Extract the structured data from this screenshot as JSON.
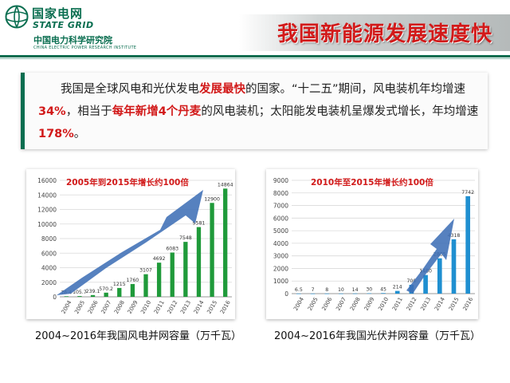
{
  "header": {
    "logo_cn": "国家电网",
    "logo_en": "STATE GRID",
    "org_cn": "中国电力科学研究院",
    "org_en": "CHINA ELECTRIC POWER RESEARCH INSTITUTE",
    "title": "我国新能源发展速度快"
  },
  "summary": {
    "p1": "我国是全球风电和光伏发电",
    "h1": "发展最快",
    "p2": "的国家。“十二五”期间，风电装机年均增速",
    "h2": "34%",
    "p3": "，相当于",
    "h3": "每年新增4个丹麦",
    "p4": "的风电装机；太阳能发电装机呈爆发式增长，年均增速",
    "h4": "178%",
    "p5": "。"
  },
  "chart_data": [
    {
      "type": "bar",
      "annotation": "2005年到2015年增长约100倍",
      "caption": "2004~2016年我国风电并网容量（万千瓦）",
      "categories": [
        "2004",
        "2005",
        "2006",
        "2007",
        "2008",
        "2009",
        "2010",
        "2011",
        "2012",
        "2013",
        "2014",
        "2015",
        "2016"
      ],
      "values": [
        76.4,
        105.7,
        239.1,
        570.2,
        1215,
        1760,
        3107,
        4692,
        6083,
        7548,
        9581,
        12900,
        14864
      ],
      "value_labels": [
        "76.4",
        "105.7",
        "239.1",
        "570.2",
        "1215",
        "1760",
        "3107",
        "4692",
        "6083",
        "7548",
        "9581",
        "12900",
        "14864"
      ],
      "ylim": [
        0,
        16000
      ],
      "yticks": [
        "0",
        "2000",
        "4000",
        "6000",
        "8000",
        "10000",
        "12000",
        "14000",
        "16000"
      ],
      "bar_color": "#1f9a3a",
      "grid": true
    },
    {
      "type": "bar",
      "annotation": "2010年至2015年增长约100倍",
      "caption": "2004~2016年我国光伏并网容量（万千瓦）",
      "categories": [
        "2004",
        "2005",
        "2006",
        "2007",
        "2008",
        "2009",
        "2010",
        "2011",
        "2012",
        "2013",
        "2014",
        "2015",
        "2016"
      ],
      "values": [
        6.5,
        7,
        8,
        10,
        14,
        30,
        45,
        214,
        700,
        1480,
        2805,
        4318,
        7742
      ],
      "value_labels": [
        "6.5",
        "7",
        "8",
        "10",
        "14",
        "30",
        "45",
        "214",
        "700",
        "1480",
        "2805",
        "4318",
        "7742"
      ],
      "ylim": [
        0,
        9000
      ],
      "yticks": [
        "0",
        "1000",
        "2000",
        "3000",
        "4000",
        "5000",
        "6000",
        "7000",
        "8000",
        "9000"
      ],
      "bar_color": "#1f8fd0",
      "grid": true
    }
  ],
  "colors": {
    "brand_green": "#0a6e50",
    "highlight_red": "#d21a1a",
    "arrow_blue": "#3f6fb6"
  }
}
